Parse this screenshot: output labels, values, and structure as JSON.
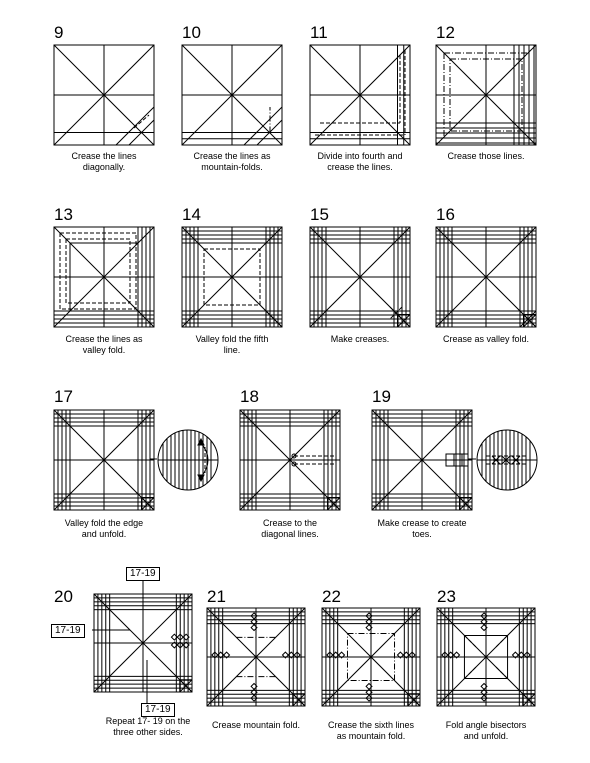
{
  "steps": [
    {
      "number": "9",
      "caption": "Crease the lines\ndiagonally."
    },
    {
      "number": "10",
      "caption": "Crease the lines as\nmountain-folds."
    },
    {
      "number": "11",
      "caption": "Divide into fourth and\ncrease the lines."
    },
    {
      "number": "12",
      "caption": "Crease those lines."
    },
    {
      "number": "13",
      "caption": "Crease the lines as\nvalley fold."
    },
    {
      "number": "14",
      "caption": "Valley fold the fifth\nline."
    },
    {
      "number": "15",
      "caption": "Make creases."
    },
    {
      "number": "16",
      "caption": "Crease as valley fold."
    },
    {
      "number": "17",
      "caption": "Valley fold the edge\nand unfold."
    },
    {
      "number": "18",
      "caption": "Crease to the\ndiagonal lines."
    },
    {
      "number": "19",
      "caption": "Make crease to create\ntoes."
    },
    {
      "number": "20",
      "caption": "Repeat 17- 19 on the\nthree other sides."
    },
    {
      "number": "21",
      "caption": "Crease mountain fold."
    },
    {
      "number": "22",
      "caption": "Crease the sixth lines\nas mountain fold."
    },
    {
      "number": "23",
      "caption": "Fold angle bisectors\nand unfold."
    }
  ],
  "references": {
    "top": "17-19",
    "left": "17-19",
    "bottom": "17-19"
  }
}
